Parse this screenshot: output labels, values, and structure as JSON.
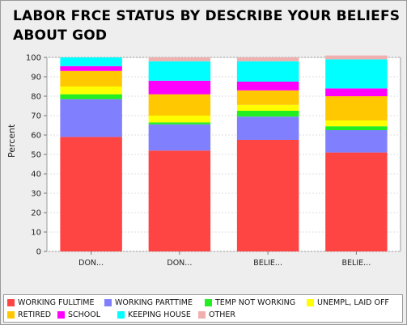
{
  "chart_data": {
    "type": "bar",
    "stacked": true,
    "title": "LABOR FRCE STATUS BY DESCRIBE YOUR BELIEFS ABOUT GOD",
    "xlabel": "",
    "ylabel": "Percent",
    "ylim": [
      0,
      100
    ],
    "yticks": [
      0,
      10,
      20,
      30,
      40,
      50,
      60,
      70,
      80,
      90,
      100
    ],
    "grid": true,
    "legend_position": "bottom",
    "categories": [
      "DON...",
      "DON...",
      "BELIE...",
      "BELIE..."
    ],
    "series": [
      {
        "name": "WORKING FULLTIME",
        "color": "#ff4444",
        "values": [
          59,
          52,
          57.5,
          51
        ]
      },
      {
        "name": "WORKING PARTTIME",
        "color": "#8080ff",
        "values": [
          19.5,
          13.5,
          12,
          11.5
        ]
      },
      {
        "name": "TEMP NOT WORKING",
        "color": "#22ee22",
        "values": [
          2.5,
          1,
          3,
          2
        ]
      },
      {
        "name": "UNEMPL, LAID OFF",
        "color": "#ffff00",
        "values": [
          4,
          3.5,
          3,
          3
        ]
      },
      {
        "name": "RETIRED",
        "color": "#ffc800",
        "values": [
          8,
          11,
          7.5,
          12.5
        ]
      },
      {
        "name": "SCHOOL",
        "color": "#ff00ff",
        "values": [
          2.5,
          7,
          4.5,
          4
        ]
      },
      {
        "name": "KEEPING HOUSE",
        "color": "#00ffff",
        "values": [
          4.5,
          10,
          10.5,
          15
        ]
      },
      {
        "name": "OTHER",
        "color": "#f0b0b0",
        "values": [
          0,
          2,
          2,
          2
        ]
      }
    ]
  }
}
